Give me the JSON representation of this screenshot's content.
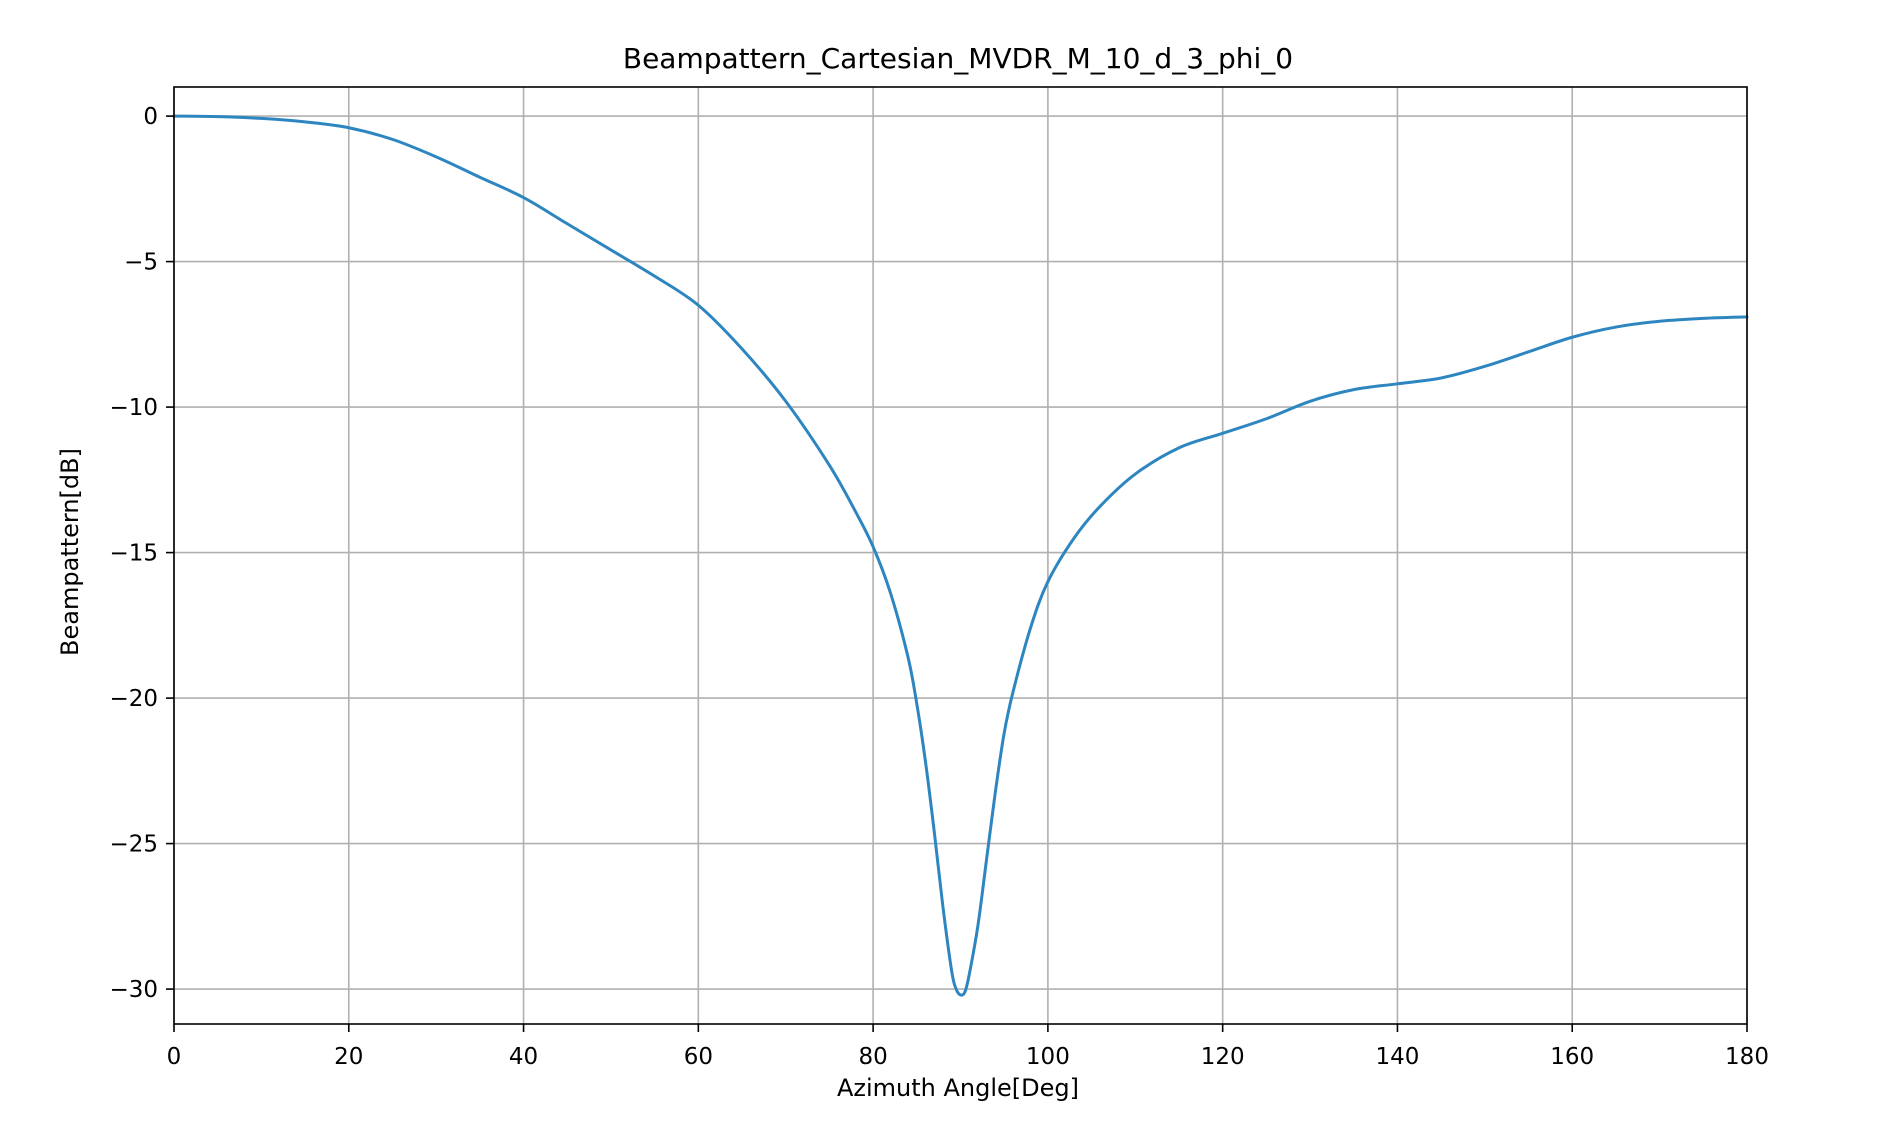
{
  "chart_data": {
    "type": "line",
    "title": "Beampattern_Cartesian_MVDR_M_10_d_3_phi_0",
    "xlabel": "Azimuth Angle[Deg]",
    "ylabel": "Beampattern[dB]",
    "xlim": [
      0,
      180
    ],
    "ylim": [
      -31.2,
      1.0
    ],
    "xticks": [
      0,
      20,
      40,
      60,
      80,
      100,
      120,
      140,
      160,
      180
    ],
    "yticks": [
      0,
      -5,
      -10,
      -15,
      -20,
      -25,
      -30
    ],
    "xtick_labels": [
      "0",
      "20",
      "40",
      "60",
      "80",
      "100",
      "120",
      "140",
      "160",
      "180"
    ],
    "ytick_labels": [
      "0",
      "−5",
      "−10",
      "−15",
      "−20",
      "−25",
      "−30"
    ],
    "grid": true,
    "line_color": "#2e86c1",
    "series": [
      {
        "x": [
          0,
          5,
          10,
          15,
          20,
          25,
          30,
          35,
          40,
          45,
          50,
          55,
          60,
          65,
          70,
          75,
          78,
          80,
          82,
          84,
          85,
          86,
          87,
          88,
          89,
          89.5,
          90,
          90.5,
          91,
          92,
          93,
          94,
          95,
          96,
          98,
          100,
          103,
          106,
          110,
          115,
          120,
          125,
          130,
          135,
          140,
          145,
          150,
          155,
          160,
          165,
          170,
          175,
          180
        ],
        "y": [
          0,
          -0.02,
          -0.08,
          -0.2,
          -0.4,
          -0.8,
          -1.4,
          -2.1,
          -2.8,
          -3.7,
          -4.6,
          -5.5,
          -6.5,
          -8.0,
          -9.8,
          -12.0,
          -13.6,
          -14.8,
          -16.4,
          -18.6,
          -20.2,
          -22.2,
          -24.6,
          -27.2,
          -29.4,
          -30.0,
          -30.2,
          -30.1,
          -29.5,
          -27.8,
          -25.5,
          -23.2,
          -21.2,
          -19.8,
          -17.6,
          -16.0,
          -14.5,
          -13.4,
          -12.3,
          -11.4,
          -10.9,
          -10.4,
          -9.8,
          -9.4,
          -9.2,
          -9.0,
          -8.6,
          -8.1,
          -7.6,
          -7.25,
          -7.05,
          -6.95,
          -6.9
        ]
      }
    ]
  }
}
